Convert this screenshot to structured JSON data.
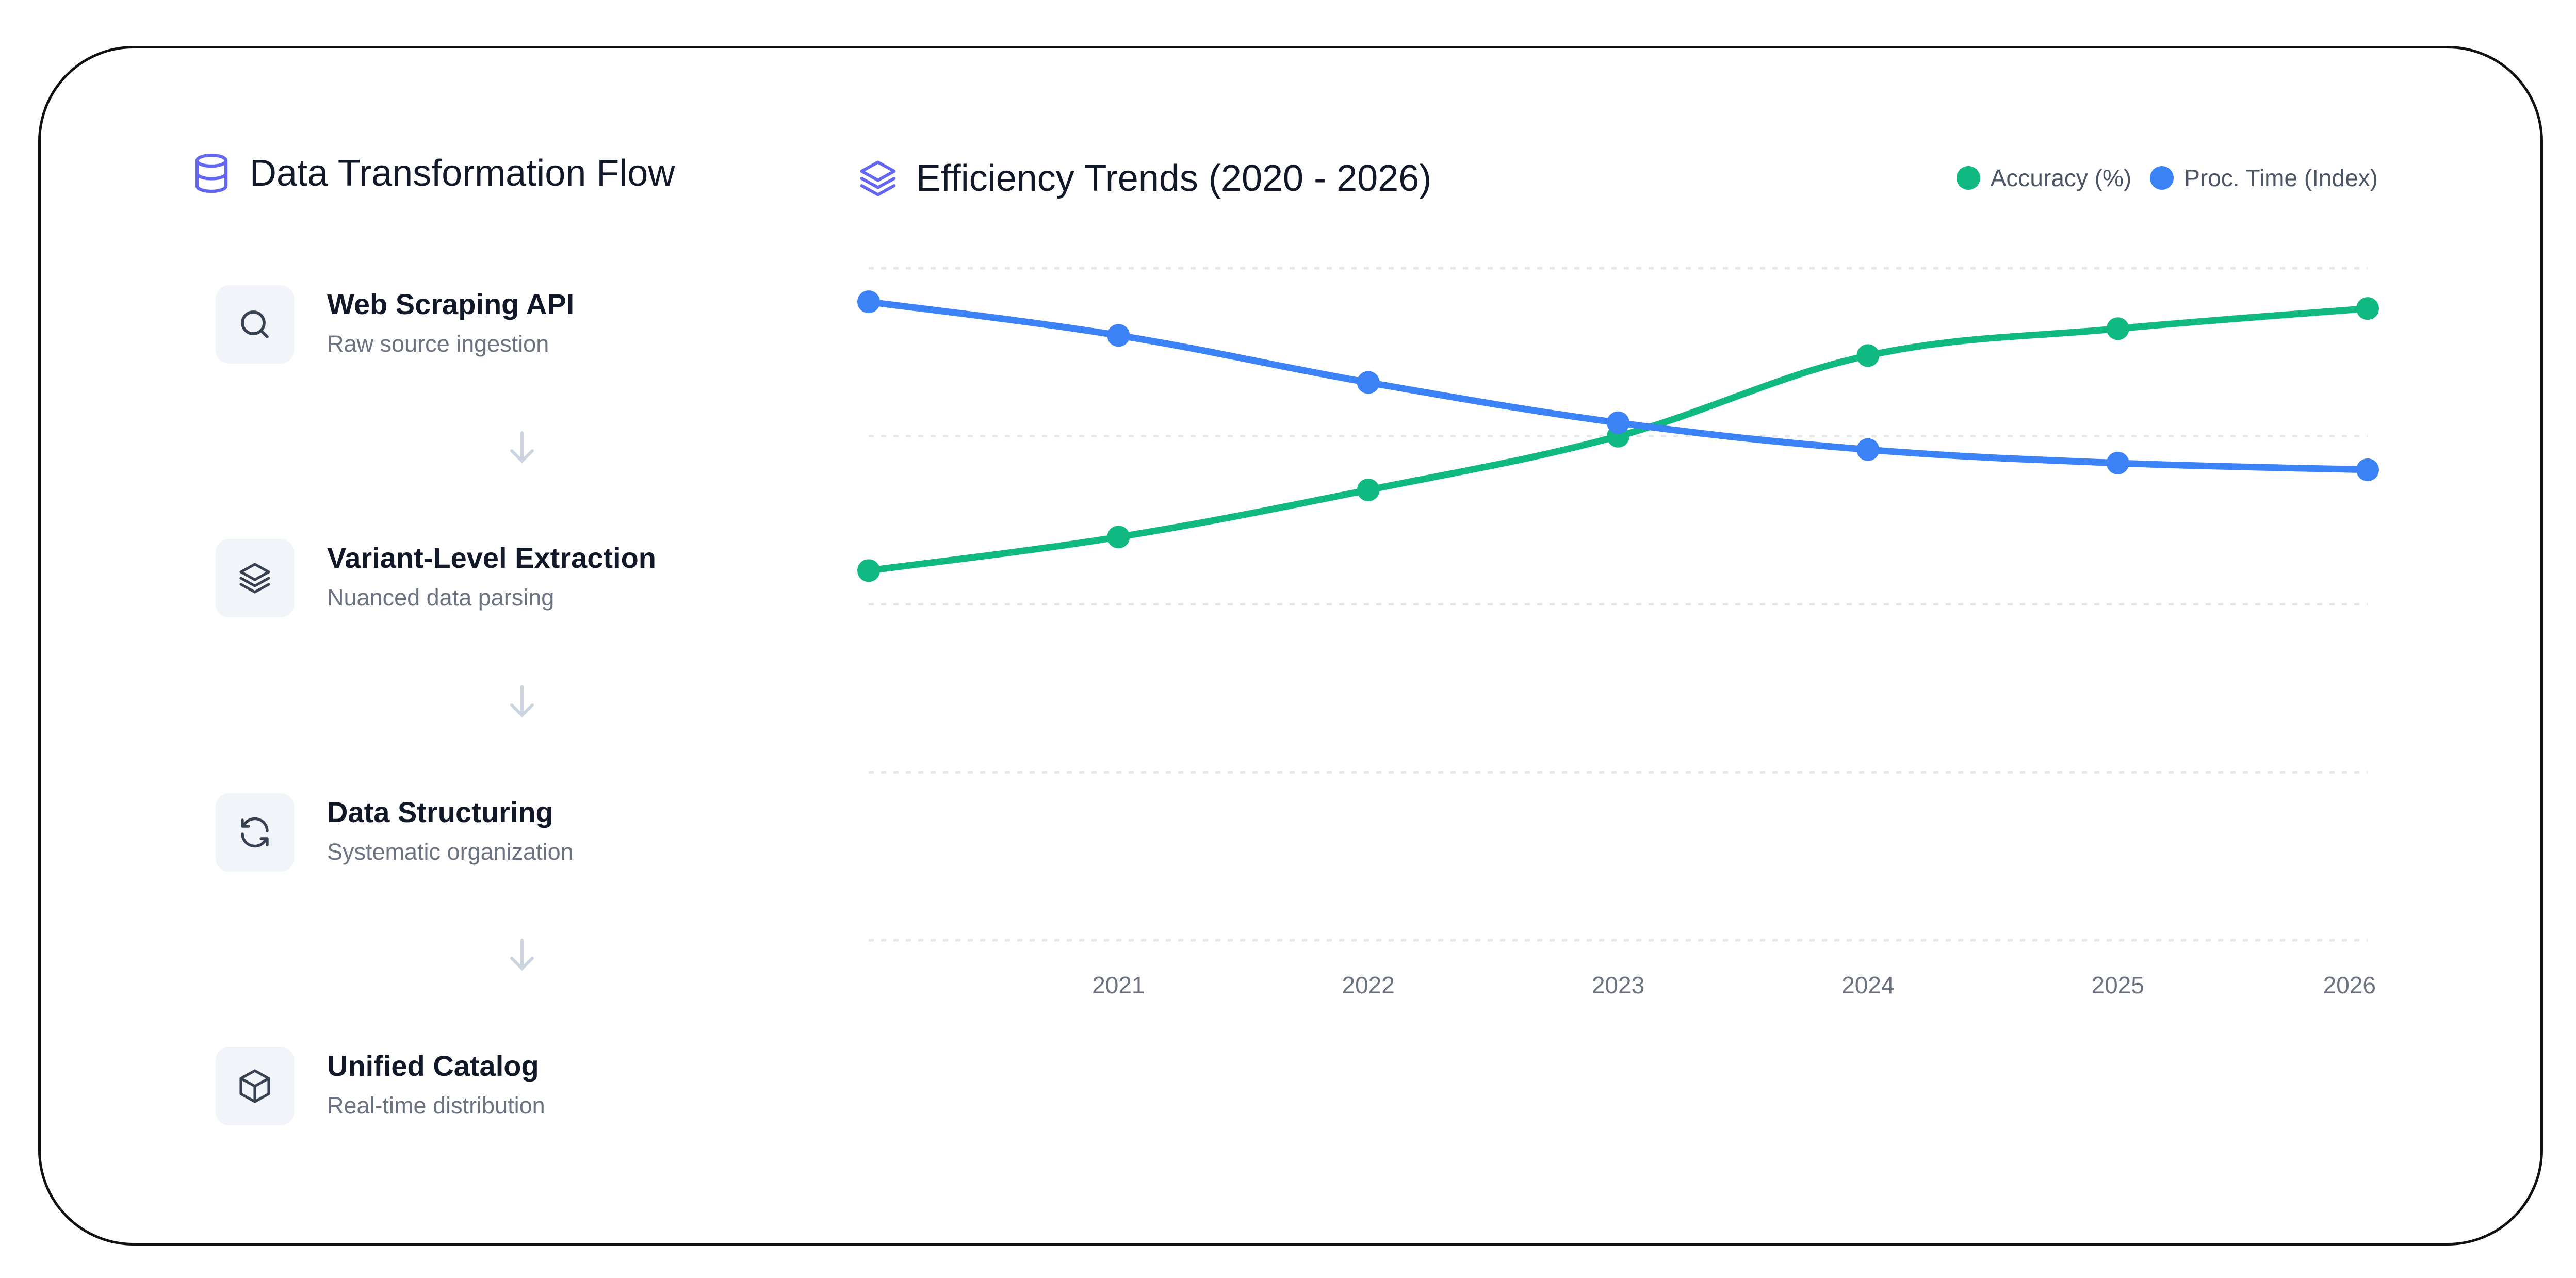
{
  "flow": {
    "title": "Data Transformation Flow",
    "steps": [
      {
        "name": "Web Scraping API",
        "desc": "Raw source ingestion",
        "icon": "search-icon"
      },
      {
        "name": "Variant-Level Extraction",
        "desc": "Nuanced data parsing",
        "icon": "layers-icon"
      },
      {
        "name": "Data Structuring",
        "desc": "Systematic organization",
        "icon": "refresh-icon"
      },
      {
        "name": "Unified Catalog",
        "desc": "Real-time distribution",
        "icon": "cube-icon"
      }
    ]
  },
  "colors": {
    "accent": "#6366f1",
    "accuracy": "#10b981",
    "proc_time": "#3b82f6",
    "grid": "#e5e7eb",
    "tick_text": "#6b7280"
  },
  "chart_data": {
    "type": "line",
    "title": "Efficiency Trends (2020 - 2026)",
    "x": [
      2020,
      2021,
      2022,
      2023,
      2024,
      2025,
      2026
    ],
    "x_tick_labels": [
      "",
      "2021",
      "2022",
      "2023",
      "2024",
      "2025",
      "2026"
    ],
    "xlabel": "",
    "ylabel": "",
    "ylim": [
      0,
      100
    ],
    "grid": true,
    "legend": "top-right",
    "series": [
      {
        "name": "Accuracy (%)",
        "values": [
          55,
          60,
          67,
          75,
          87,
          91,
          94
        ]
      },
      {
        "name": "Proc. Time (Index)",
        "values": [
          95,
          90,
          83,
          77,
          73,
          71,
          70
        ]
      }
    ]
  }
}
